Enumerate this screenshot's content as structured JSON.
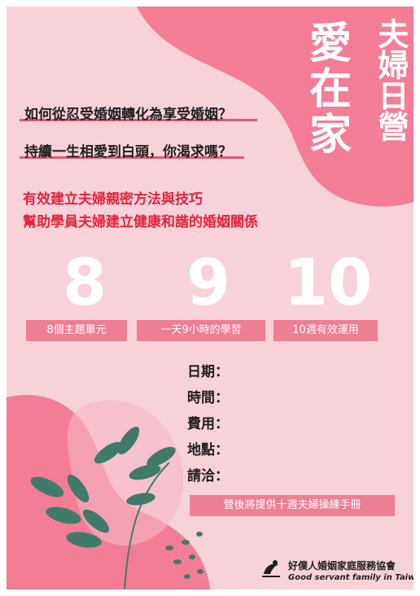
{
  "title": {
    "main_line1": "愛",
    "main_line2": "在",
    "main_line3": "家",
    "sub": "夫婦日營"
  },
  "questions": [
    "如何從忍受婚姻轉化為享受婚姻？",
    "持續一生相愛到白頭，你渴求嗎？"
  ],
  "highlights": [
    "有效建立夫婦親密方法與技巧",
    "幫助學員夫婦建立健康和諧的婚姻關係"
  ],
  "stats": [
    {
      "number": "8",
      "label": "8個主題單元"
    },
    {
      "number": "9",
      "label": "一天9小時的學習"
    },
    {
      "number": "10",
      "label": "10週有效運用"
    }
  ],
  "info": {
    "date": "日期：",
    "time": "時間：",
    "fee": "費用：",
    "venue": "地點：",
    "contact": "請洽："
  },
  "banner": "營後將提供十週夫婦操練手冊",
  "org": {
    "name_zh": "好僕人婚姻家庭服務協會",
    "name_en": "Good servant family in Taiwan"
  },
  "colors": {
    "background": "#f8d2d9",
    "accent_pink": "#ee7f92",
    "highlight_red": "#e4233a",
    "leaf_green": "#3f7a6a"
  }
}
